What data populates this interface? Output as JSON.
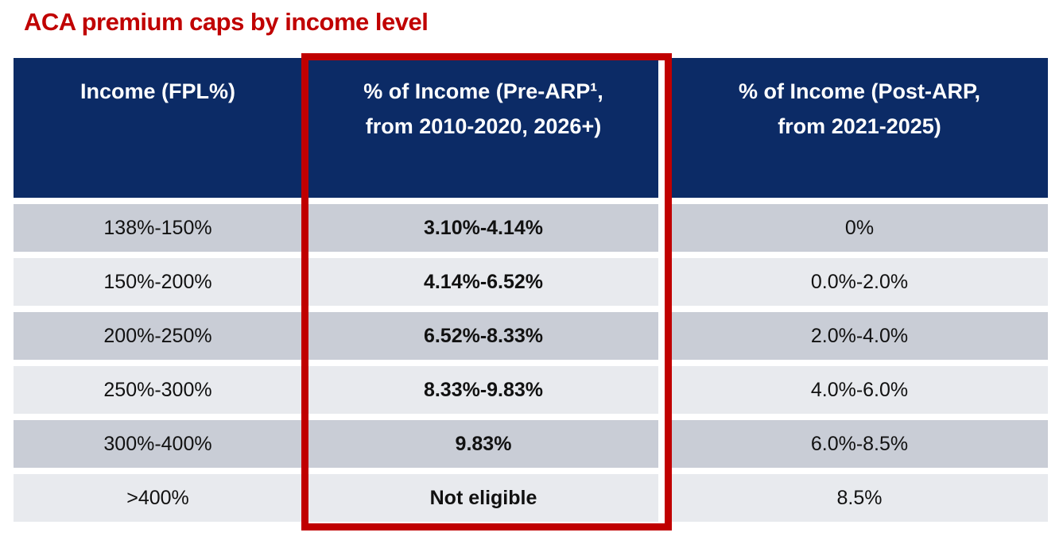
{
  "title": "ACA premium caps by income level",
  "colors": {
    "title_red": "#C00000",
    "header_navy": "#0C2B66",
    "row_dark_gray": "#C9CDD6",
    "row_light_gray": "#E8EAEE",
    "highlight_border_red": "#C00000"
  },
  "table": {
    "columns": [
      {
        "label": "Income (FPL%)"
      },
      {
        "label": "% of Income (Pre-ARP¹,\nfrom 2010-2020, 2026+)",
        "highlighted": true,
        "footnote_marker": "1"
      },
      {
        "label": "% of Income (Post-ARP,\nfrom 2021-2025)"
      }
    ],
    "rows": [
      [
        "138%-150%",
        "3.10%-4.14%",
        "0%"
      ],
      [
        "150%-200%",
        "4.14%-6.52%",
        "0.0%-2.0%"
      ],
      [
        "200%-250%",
        "6.52%-8.33%",
        "2.0%-4.0%"
      ],
      [
        "250%-300%",
        "8.33%-9.83%",
        "4.0%-6.0%"
      ],
      [
        "300%-400%",
        "9.83%",
        "6.0%-8.5%"
      ],
      [
        ">400%",
        "Not eligible",
        "8.5%"
      ]
    ]
  },
  "chart_data": {
    "type": "table",
    "title": "ACA premium caps by income level",
    "columns": [
      "Income (FPL%)",
      "% of Income (Pre-ARP¹, from 2010-2020, 2026+)",
      "% of Income (Post-ARP, from 2021-2025)"
    ],
    "rows": [
      [
        "138%-150%",
        "3.10%-4.14%",
        "0%"
      ],
      [
        "150%-200%",
        "4.14%-6.52%",
        "0.0%-2.0%"
      ],
      [
        "200%-250%",
        "6.52%-8.33%",
        "2.0%-4.0%"
      ],
      [
        "250%-300%",
        "8.33%-9.83%",
        "4.0%-6.0%"
      ],
      [
        "300%-400%",
        "9.83%",
        "6.0%-8.5%"
      ],
      [
        ">400%",
        "Not eligible",
        "8.5%"
      ]
    ],
    "highlighted_column": "% of Income (Pre-ARP¹, from 2010-2020, 2026+)",
    "layout": {
      "header_bg": "navy",
      "alternating_row_shading": true,
      "highlight": "red box around middle column"
    }
  }
}
